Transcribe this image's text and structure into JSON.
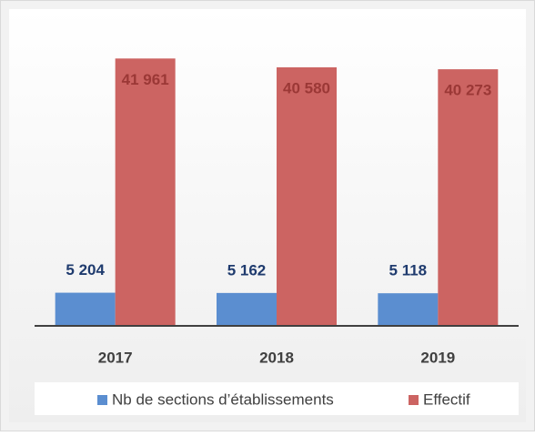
{
  "chart_data": {
    "type": "bar",
    "categories": [
      "2017",
      "2018",
      "2019"
    ],
    "series": [
      {
        "name": "Nb de sections d’établissements",
        "color": "#5b8ed0",
        "values": [
          5204,
          5162,
          5118
        ],
        "value_labels": [
          "5 204",
          "5 162",
          "5 118"
        ]
      },
      {
        "name": "Effectif",
        "color": "#cc6462",
        "values": [
          41961,
          40580,
          40273
        ],
        "value_labels": [
          "41 961",
          "40 580",
          "40 273"
        ]
      }
    ],
    "ylim": [
      0,
      45000
    ],
    "legend": "bottom"
  }
}
